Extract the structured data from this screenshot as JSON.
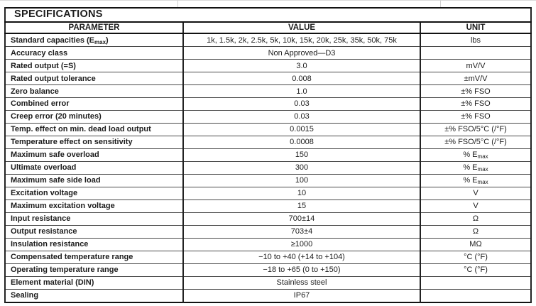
{
  "title": "SPECIFICATIONS",
  "header": {
    "parameter": "PARAMETER",
    "value": "VALUE",
    "unit": "UNIT"
  },
  "rows": [
    {
      "param_pre": "Standard capacities (E",
      "param_sub": "max",
      "param_post": ")",
      "value": "1k, 1.5k, 2k, 2.5k, 5k, 10k, 15k, 20k, 25k, 35k, 50k, 75k",
      "unit": "lbs"
    },
    {
      "param": "Accuracy class",
      "value": "Non Approved—D3",
      "unit": ""
    },
    {
      "param": "Rated output (=S)",
      "value": "3.0",
      "unit": "mV/V"
    },
    {
      "param": "Rated output tolerance",
      "value": "0.008",
      "unit": "±mV/V"
    },
    {
      "param": "Zero balance",
      "value": "1.0",
      "unit": "±% FSO"
    },
    {
      "param": "Combined error",
      "value": "0.03",
      "unit": "±% FSO"
    },
    {
      "param": "Creep error (20 minutes)",
      "value": "0.03",
      "unit": "±% FSO"
    },
    {
      "param": "Temp. effect on min. dead load output",
      "value": "0.0015",
      "unit": "±% FSO/5°C (/°F)"
    },
    {
      "param": "Temperature effect on sensitivity",
      "value": "0.0008",
      "unit": "±% FSO/5°C (/°F)"
    },
    {
      "param": "Maximum safe overload",
      "value": "150",
      "unit_pre": "% E",
      "unit_sub": "max"
    },
    {
      "param": "Ultimate overload",
      "value": "300",
      "unit_pre": "% E",
      "unit_sub": "max"
    },
    {
      "param": "Maximum safe side load",
      "value": "100",
      "unit_pre": "% E",
      "unit_sub": "max"
    },
    {
      "param": "Excitation voltage",
      "value": "10",
      "unit": "V"
    },
    {
      "param": "Maximum excitation voltage",
      "value": "15",
      "unit": "V"
    },
    {
      "param": "Input resistance",
      "value": "700±14",
      "unit": "Ω"
    },
    {
      "param": "Output resistance",
      "value": "703±4",
      "unit": "Ω"
    },
    {
      "param": "Insulation resistance",
      "value": "≥1000",
      "unit": "MΩ"
    },
    {
      "param": "Compensated temperature range",
      "value": "−10 to +40 (+14 to +104)",
      "unit": "°C (°F)"
    },
    {
      "param": "Operating temperature range",
      "value": "−18 to +65 (0 to +150)",
      "unit": "°C (°F)"
    },
    {
      "param": "Element material (DIN)",
      "value": "Stainless steel",
      "unit": ""
    },
    {
      "param": "Sealing",
      "value": "IP67",
      "unit": ""
    }
  ]
}
